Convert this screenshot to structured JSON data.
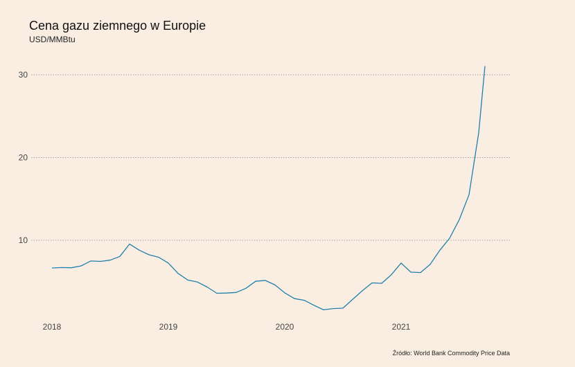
{
  "header": {
    "title": "Cena gazu ziemnego w Europie",
    "subtitle": "USD/MMBtu"
  },
  "footer": {
    "source": "Źródło: World Bank Commodity Price Data"
  },
  "colors": {
    "background": "#FAEEE3",
    "line": "#1F7FA8",
    "grid": "#8a8a8a"
  },
  "chart_data": {
    "type": "line",
    "title": "Cena gazu ziemnego w Europie",
    "subtitle": "USD/MMBtu",
    "xlabel": "",
    "ylabel": "",
    "y_ticks": [
      10,
      20,
      30
    ],
    "y_tick_labels": [
      "10",
      "20",
      "30"
    ],
    "x_ticks": [
      "2018-01",
      "2019-01",
      "2020-01",
      "2021-01"
    ],
    "x_tick_labels": [
      "2018",
      "2019",
      "2020",
      "2021"
    ],
    "ylim": [
      0,
      31.5
    ],
    "xlim": [
      "2018-01",
      "2021-09"
    ],
    "grid": "horizontal dotted",
    "legend": "none",
    "series": [
      {
        "x": [
          "2018-01",
          "2018-02",
          "2018-03",
          "2018-04",
          "2018-05",
          "2018-06",
          "2018-07",
          "2018-08",
          "2018-09",
          "2018-10",
          "2018-11",
          "2018-12",
          "2019-01",
          "2019-02",
          "2019-03",
          "2019-04",
          "2019-05",
          "2019-06",
          "2019-07",
          "2019-08",
          "2019-09",
          "2019-10",
          "2019-11",
          "2019-12",
          "2020-01",
          "2020-02",
          "2020-03",
          "2020-04",
          "2020-05",
          "2020-06",
          "2020-07",
          "2020-08",
          "2020-09",
          "2020-10",
          "2020-11",
          "2020-12",
          "2021-01",
          "2021-02",
          "2021-03",
          "2021-04",
          "2021-05",
          "2021-06",
          "2021-07",
          "2021-08",
          "2021-09"
        ],
        "values": [
          6.65,
          6.7,
          6.68,
          6.9,
          7.5,
          7.45,
          7.6,
          8.05,
          9.55,
          8.8,
          8.25,
          7.95,
          7.25,
          6.0,
          5.2,
          4.95,
          4.35,
          3.6,
          3.62,
          3.7,
          4.2,
          5.05,
          5.15,
          4.6,
          3.65,
          2.95,
          2.75,
          2.15,
          1.6,
          1.75,
          1.8,
          2.85,
          3.9,
          4.85,
          4.8,
          5.85,
          7.25,
          6.15,
          6.1,
          7.1,
          8.8,
          10.25,
          12.5,
          15.5,
          23.0
        ]
      }
    ],
    "last_point": {
      "x": "2021-10",
      "value": 31.05
    }
  }
}
